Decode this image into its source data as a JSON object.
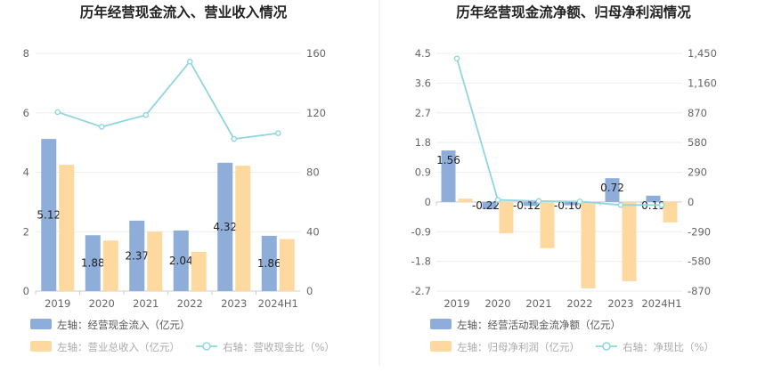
{
  "chart_data": [
    {
      "type": "bar",
      "title": "历年经营现金流入、营业收入情况",
      "categories": [
        "2019",
        "2020",
        "2021",
        "2022",
        "2023",
        "2024H1"
      ],
      "y_left": {
        "ticks": [
          "0",
          "2",
          "4",
          "6",
          "8"
        ],
        "range": [
          0,
          8
        ]
      },
      "y_right": {
        "ticks": [
          "0",
          "40",
          "80",
          "120",
          "160"
        ],
        "range": [
          0,
          160
        ]
      },
      "series": [
        {
          "name": "左轴：经营现金流入（亿元）",
          "type": "bar",
          "axis": "left",
          "color": "#8eadd9",
          "values": [
            5.12,
            1.88,
            2.37,
            2.04,
            4.32,
            1.86
          ],
          "labels": [
            "5.12",
            "1.88",
            "2.37",
            "2.04",
            "4.32",
            "1.86"
          ]
        },
        {
          "name": "左轴：营业总收入（亿元）",
          "type": "bar",
          "axis": "left",
          "color": "#fdd9a0",
          "values": [
            4.25,
            1.7,
            2.0,
            1.32,
            4.22,
            1.75
          ]
        },
        {
          "name": "右轴：营收现金比（%）",
          "type": "line",
          "axis": "right",
          "color": "#8fd6df",
          "values": [
            120.5,
            110.6,
            118.5,
            154.5,
            102.4,
            106.3
          ]
        }
      ]
    },
    {
      "type": "bar",
      "title": "历年经营现金流净额、归母净利润情况",
      "categories": [
        "2019",
        "2020",
        "2021",
        "2022",
        "2023",
        "2024H1"
      ],
      "y_left": {
        "ticks": [
          "4.5",
          "3.6",
          "2.7",
          "1.8",
          "0.9",
          "0",
          "-0.9",
          "-1.8",
          "-2.7"
        ],
        "range": [
          -2.7,
          4.5
        ]
      },
      "y_right": {
        "ticks": [
          "1,450",
          "1,160",
          "870",
          "580",
          "290",
          "0",
          "-290",
          "-580",
          "-870"
        ],
        "range": [
          -870,
          1450
        ]
      },
      "series": [
        {
          "name": "左轴：经营活动现金流净额（亿元）",
          "type": "bar",
          "axis": "left",
          "color": "#8eadd9",
          "values": [
            1.56,
            -0.22,
            -0.12,
            -0.1,
            0.72,
            0.19
          ],
          "labels": [
            "1.56",
            "-0.22",
            "-0.12",
            "-0.10",
            "0.72",
            "0.19"
          ]
        },
        {
          "name": "左轴：归母净利润（亿元）",
          "type": "bar",
          "axis": "left",
          "color": "#fdd9a0",
          "values": [
            0.1,
            -0.95,
            -1.4,
            -2.62,
            -2.4,
            -0.62
          ]
        },
        {
          "name": "右轴：净现比（%）",
          "type": "line",
          "axis": "right",
          "color": "#8fd6df",
          "values": [
            1400,
            20,
            9,
            4,
            -30,
            -30
          ]
        }
      ]
    }
  ],
  "legend_colors": {
    "text": "#555555",
    "text_faded": "#aaaaaa"
  }
}
